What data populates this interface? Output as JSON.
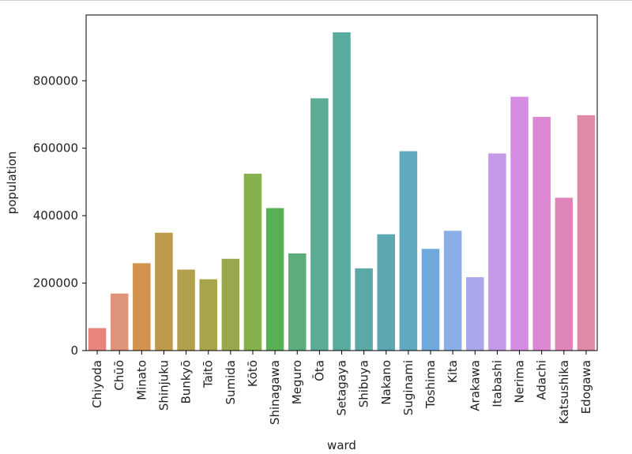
{
  "chart_data": {
    "type": "bar",
    "title": "",
    "xlabel": "ward",
    "ylabel": "population",
    "ylim": [
      0,
      995000
    ],
    "yticks": [
      0,
      200000,
      400000,
      600000,
      800000
    ],
    "ytick_labels": [
      "0",
      "200000",
      "400000",
      "600000",
      "800000"
    ],
    "grid": false,
    "categories": [
      "Chiyoda",
      "Chūō",
      "Minato",
      "Shinjuku",
      "Bunkyō",
      "Taitō",
      "Sumida",
      "Kōtō",
      "Shinagawa",
      "Meguro",
      "Ōta",
      "Setagaya",
      "Shibuya",
      "Nakano",
      "Suginami",
      "Toshima",
      "Kita",
      "Arakawa",
      "Itabashi",
      "Nerima",
      "Adachi",
      "Katsushika",
      "Edogawa"
    ],
    "values": [
      66680,
      169179,
      259042,
      349385,
      240069,
      211444,
      272085,
      524310,
      422488,
      288088,
      748081,
      943664,
      243883,
      344880,
      591108,
      301599,
      355213,
      217475,
      584483,
      752608,
      692950,
      453093,
      697932
    ],
    "colors": [
      "#e8847c",
      "#dd9478",
      "#d3934c",
      "#be9a4c",
      "#b2a04c",
      "#a8a44c",
      "#99a84c",
      "#85b04c",
      "#58b054",
      "#5dad7c",
      "#5aad94",
      "#58ab9e",
      "#5aa9a6",
      "#5ba8b2",
      "#5ea8c0",
      "#6ea8dc",
      "#8caee6",
      "#aaa8ea",
      "#c49ae8",
      "#d58de4",
      "#dc88d2",
      "#e085b9",
      "#e08aa8"
    ]
  }
}
